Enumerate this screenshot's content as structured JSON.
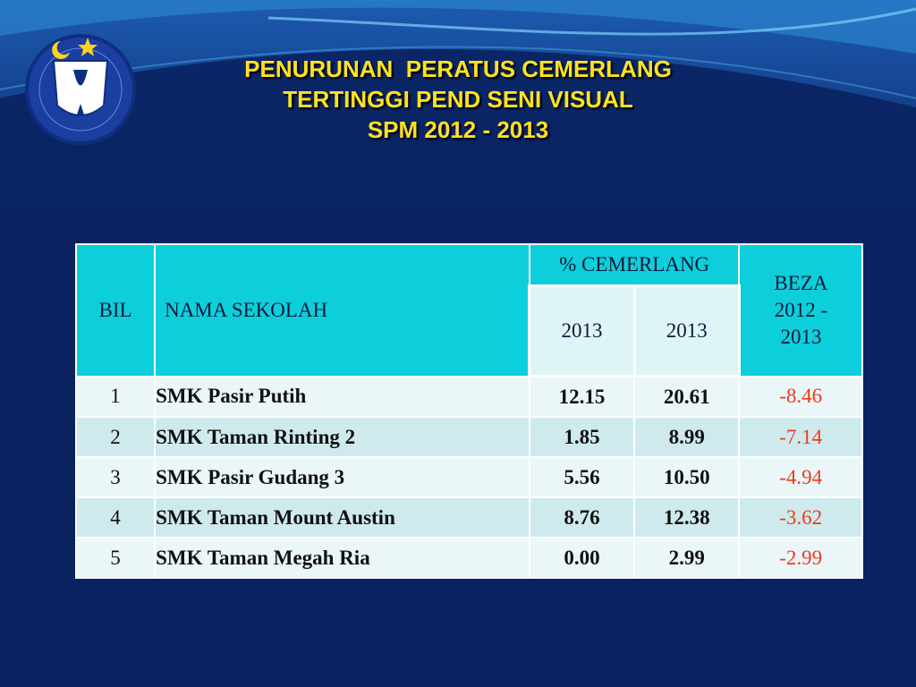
{
  "title": {
    "line1": "PENURUNAN  PERATUS CEMERLANG",
    "line2": "TERTINGGI PEND SENI VISUAL",
    "line3": "SPM 2012 - 2013"
  },
  "table": {
    "headers": {
      "bil": "BIL",
      "nama": "NAMA SEKOLAH",
      "cemerlang": "% CEMERLANG",
      "year1": "2013",
      "year2": "2013",
      "beza": "BEZA",
      "beza_range_1": "2012  -",
      "beza_range_2": "2013"
    },
    "rows": [
      {
        "bil": "1",
        "nama": "SMK Pasir Putih",
        "v1": "12.15",
        "v2": "20.61",
        "beza": "-8.46"
      },
      {
        "bil": "2",
        "nama": "SMK Taman Rinting 2",
        "v1": "1.85",
        "v2": "8.99",
        "beza": "-7.14"
      },
      {
        "bil": "3",
        "nama": "SMK Pasir Gudang 3",
        "v1": "5.56",
        "v2": "10.50",
        "beza": "-4.94"
      },
      {
        "bil": "4",
        "nama": "SMK Taman Mount Austin",
        "v1": "8.76",
        "v2": "12.38",
        "beza": "-3.62"
      },
      {
        "bil": "5",
        "nama": "SMK Taman Megah Ria",
        "v1": "0.00",
        "v2": "2.99",
        "beza": "-2.99"
      }
    ]
  },
  "colors": {
    "background": "#0a2260",
    "title": "#ffe21f",
    "header": "#0ccfdb",
    "negative": "#ee3a1a"
  },
  "icons": {
    "logo": "school-crest-logo"
  }
}
